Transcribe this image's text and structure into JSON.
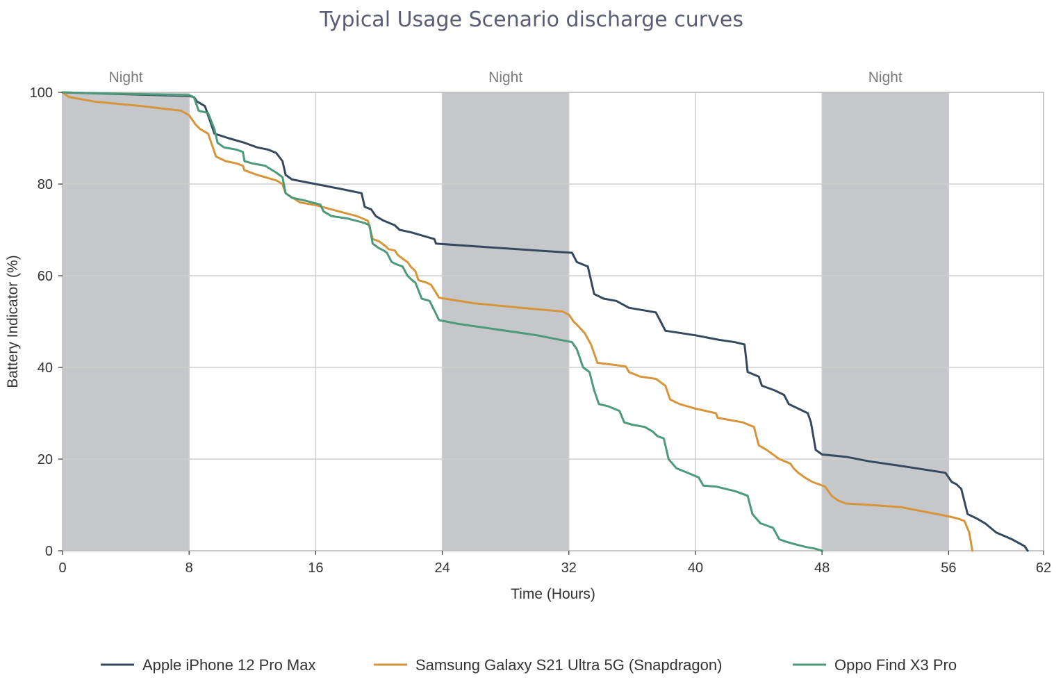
{
  "chart_data": {
    "type": "line",
    "title": "Typical Usage Scenario discharge curves",
    "xlabel": "Time (Hours)",
    "ylabel": "Battery Indicator (%)",
    "xlim": [
      0,
      62
    ],
    "ylim": [
      0,
      100
    ],
    "xticks": [
      0,
      8,
      16,
      24,
      32,
      40,
      48,
      56,
      62
    ],
    "yticks": [
      0,
      20,
      40,
      60,
      80,
      100
    ],
    "grid": true,
    "legend_position": "bottom",
    "night_bands": [
      {
        "label": "Night",
        "start": 0,
        "end": 8
      },
      {
        "label": "Night",
        "start": 24,
        "end": 32
      },
      {
        "label": "Night",
        "start": 48,
        "end": 56
      }
    ],
    "series": [
      {
        "name": "Apple iPhone 12 Pro Max",
        "color": "#34495e",
        "points": [
          [
            0,
            100
          ],
          [
            8,
            99.2
          ],
          [
            8.3,
            99
          ],
          [
            8.5,
            98
          ],
          [
            9,
            97
          ],
          [
            9.2,
            95
          ],
          [
            9.6,
            91
          ],
          [
            10.5,
            90
          ],
          [
            11.5,
            89
          ],
          [
            12.3,
            88
          ],
          [
            13,
            87.5
          ],
          [
            13.5,
            86.8
          ],
          [
            13.9,
            85
          ],
          [
            14.1,
            82
          ],
          [
            14.5,
            81
          ],
          [
            16,
            80
          ],
          [
            17.5,
            79
          ],
          [
            18.9,
            78
          ],
          [
            19.1,
            75
          ],
          [
            19.5,
            74.5
          ],
          [
            19.8,
            73
          ],
          [
            20.3,
            72
          ],
          [
            21,
            71
          ],
          [
            21.3,
            70
          ],
          [
            22,
            69.5
          ],
          [
            23,
            68.5
          ],
          [
            23.5,
            68
          ],
          [
            23.6,
            67
          ],
          [
            27,
            66.2
          ],
          [
            30,
            65.5
          ],
          [
            32.2,
            65
          ],
          [
            32.5,
            63
          ],
          [
            33.2,
            62
          ],
          [
            33.6,
            56
          ],
          [
            34.2,
            55
          ],
          [
            35,
            54.5
          ],
          [
            35.8,
            53
          ],
          [
            37.5,
            52
          ],
          [
            37.8,
            50
          ],
          [
            38.1,
            48
          ],
          [
            40,
            47
          ],
          [
            41.5,
            46
          ],
          [
            42.5,
            45.5
          ],
          [
            43.1,
            45
          ],
          [
            43.3,
            39
          ],
          [
            44,
            38
          ],
          [
            44.2,
            36
          ],
          [
            45,
            35
          ],
          [
            45.6,
            34
          ],
          [
            45.9,
            32
          ],
          [
            46.2,
            31.5
          ],
          [
            47.1,
            30
          ],
          [
            47.3,
            28
          ],
          [
            47.5,
            24
          ],
          [
            47.6,
            22
          ],
          [
            48,
            21
          ],
          [
            49.5,
            20.5
          ],
          [
            51,
            19.5
          ],
          [
            53,
            18.5
          ],
          [
            55.8,
            17
          ],
          [
            56.2,
            15
          ],
          [
            56.5,
            14.5
          ],
          [
            56.8,
            13.5
          ],
          [
            57.2,
            8
          ],
          [
            57.8,
            7
          ],
          [
            58.3,
            6
          ],
          [
            59,
            4
          ],
          [
            60,
            2.5
          ],
          [
            60.8,
            1
          ],
          [
            61,
            0
          ]
        ]
      },
      {
        "name": "Samsung Galaxy S21 Ultra 5G (Snapdragon)",
        "color": "#d6953a",
        "points": [
          [
            0,
            100
          ],
          [
            0.4,
            99
          ],
          [
            2,
            98
          ],
          [
            5,
            97
          ],
          [
            7.5,
            96
          ],
          [
            8,
            95
          ],
          [
            8.4,
            93
          ],
          [
            8.7,
            92
          ],
          [
            9.2,
            91
          ],
          [
            9.7,
            86
          ],
          [
            10.3,
            85
          ],
          [
            11,
            84.5
          ],
          [
            11.4,
            84
          ],
          [
            11.5,
            83
          ],
          [
            12.3,
            82
          ],
          [
            13.5,
            80.8
          ],
          [
            13.9,
            80
          ],
          [
            14.1,
            78
          ],
          [
            15,
            76
          ],
          [
            16,
            75.4
          ],
          [
            17.5,
            74
          ],
          [
            18.6,
            73
          ],
          [
            19.3,
            72
          ],
          [
            19.6,
            68
          ],
          [
            20,
            67.5
          ],
          [
            20.4,
            66.5
          ],
          [
            20.6,
            65.8
          ],
          [
            21,
            65.5
          ],
          [
            21.2,
            64.5
          ],
          [
            21.5,
            63.7
          ],
          [
            21.8,
            63
          ],
          [
            22,
            62
          ],
          [
            22.3,
            61
          ],
          [
            22.5,
            59
          ],
          [
            23,
            58.5
          ],
          [
            23.3,
            58
          ],
          [
            23.8,
            55.2
          ],
          [
            26,
            54
          ],
          [
            29,
            53
          ],
          [
            31.6,
            52.2
          ],
          [
            32,
            51.5
          ],
          [
            32.3,
            50
          ],
          [
            32.6,
            49
          ],
          [
            33,
            47.5
          ],
          [
            33.4,
            45
          ],
          [
            33.8,
            41
          ],
          [
            35,
            40.5
          ],
          [
            35.6,
            40.2
          ],
          [
            35.8,
            39
          ],
          [
            36.5,
            38
          ],
          [
            37.5,
            37.5
          ],
          [
            38.1,
            36
          ],
          [
            38.4,
            33
          ],
          [
            39,
            32
          ],
          [
            40,
            31
          ],
          [
            41.3,
            30
          ],
          [
            41.4,
            29
          ],
          [
            43,
            28
          ],
          [
            43.7,
            27
          ],
          [
            44,
            23
          ],
          [
            44.5,
            22
          ],
          [
            45.3,
            20
          ],
          [
            46,
            19
          ],
          [
            46.2,
            18
          ],
          [
            46.5,
            17
          ],
          [
            46.9,
            16
          ],
          [
            47.4,
            15
          ],
          [
            48.2,
            14
          ],
          [
            48.6,
            12
          ],
          [
            49,
            11
          ],
          [
            49.5,
            10.3
          ],
          [
            51,
            10
          ],
          [
            53,
            9.5
          ],
          [
            56,
            7.5
          ],
          [
            56.6,
            7
          ],
          [
            57,
            6.5
          ],
          [
            57.3,
            4
          ],
          [
            57.5,
            0
          ]
        ]
      },
      {
        "name": "Oppo Find X3 Pro",
        "color": "#4c9a7a",
        "points": [
          [
            0,
            100
          ],
          [
            2,
            99.8
          ],
          [
            5,
            99.6
          ],
          [
            8,
            99.4
          ],
          [
            8.3,
            99
          ],
          [
            8.6,
            96
          ],
          [
            9.2,
            95.5
          ],
          [
            9.6,
            92
          ],
          [
            9.8,
            89
          ],
          [
            10.2,
            88
          ],
          [
            11,
            87.5
          ],
          [
            11.4,
            87
          ],
          [
            11.5,
            85
          ],
          [
            12,
            84.5
          ],
          [
            12.8,
            84
          ],
          [
            13.5,
            82.5
          ],
          [
            13.9,
            81.5
          ],
          [
            14.1,
            78
          ],
          [
            14.5,
            77
          ],
          [
            15.2,
            76.5
          ],
          [
            16.3,
            75.5
          ],
          [
            16.5,
            74
          ],
          [
            17,
            73
          ],
          [
            18,
            72.5
          ],
          [
            19.1,
            71.5
          ],
          [
            19.4,
            71
          ],
          [
            19.6,
            67
          ],
          [
            20,
            66
          ],
          [
            20.3,
            65.5
          ],
          [
            20.5,
            65
          ],
          [
            20.8,
            63
          ],
          [
            21.1,
            62.5
          ],
          [
            21.5,
            62
          ],
          [
            21.8,
            60
          ],
          [
            22.1,
            59
          ],
          [
            22.3,
            58.5
          ],
          [
            22.7,
            55
          ],
          [
            23.2,
            54.5
          ],
          [
            23.8,
            50.3
          ],
          [
            25,
            49.5
          ],
          [
            27,
            48.5
          ],
          [
            30,
            47
          ],
          [
            32.2,
            45.5
          ],
          [
            32.5,
            44
          ],
          [
            32.9,
            40
          ],
          [
            33.3,
            39
          ],
          [
            33.6,
            35
          ],
          [
            33.9,
            32
          ],
          [
            34.5,
            31.5
          ],
          [
            35.2,
            30.5
          ],
          [
            35.5,
            28
          ],
          [
            36,
            27.5
          ],
          [
            36.8,
            27
          ],
          [
            37.3,
            26
          ],
          [
            37.6,
            25
          ],
          [
            38,
            24.5
          ],
          [
            38.3,
            20
          ],
          [
            38.8,
            18
          ],
          [
            39.5,
            17
          ],
          [
            40.2,
            16
          ],
          [
            40.5,
            14.2
          ],
          [
            41.3,
            14
          ],
          [
            42.5,
            13
          ],
          [
            43.3,
            12
          ],
          [
            43.6,
            8
          ],
          [
            44.1,
            6
          ],
          [
            44.9,
            5
          ],
          [
            45.3,
            2.5
          ],
          [
            45.7,
            2
          ],
          [
            46.2,
            1.5
          ],
          [
            47,
            0.8
          ],
          [
            47.5,
            0.5
          ],
          [
            48,
            0
          ]
        ]
      }
    ]
  }
}
